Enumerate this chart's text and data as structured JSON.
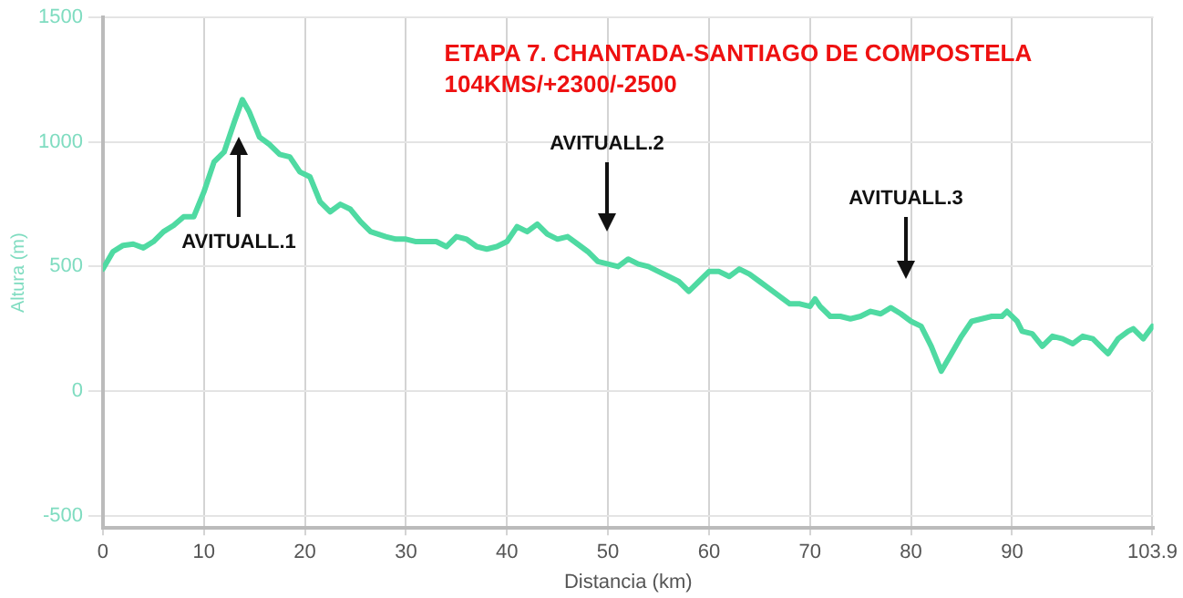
{
  "chart_data": {
    "type": "line",
    "title": "ETAPA 7. CHANTADA-SANTIAGO DE COMPOSTELA",
    "subtitle": "104KMS/+2300/-2500",
    "xlabel": "Distancia (km)",
    "ylabel": "Altura (m)",
    "x": [
      0,
      1,
      2,
      3,
      4,
      5,
      6,
      7,
      8,
      9,
      10,
      11,
      12,
      13,
      13.8,
      14.5,
      15.5,
      16.5,
      17.5,
      18.5,
      19.5,
      20.5,
      21.5,
      22.5,
      23.5,
      24.5,
      25.5,
      26.5,
      28,
      29,
      30,
      31,
      32,
      33,
      34,
      35,
      36,
      37,
      38,
      39,
      40,
      41,
      42,
      43,
      44,
      45,
      46,
      47,
      48,
      49,
      50,
      51,
      52,
      53,
      54,
      55,
      56,
      57,
      58,
      59,
      60,
      61,
      62,
      63,
      64,
      65,
      66,
      67,
      68,
      69,
      70,
      70.5,
      71,
      72,
      73,
      74,
      75,
      76,
      77,
      78,
      79,
      80,
      81,
      82,
      83,
      84,
      85,
      86,
      87,
      88,
      89,
      89.5,
      90.5,
      91,
      92,
      93,
      94,
      95,
      96,
      97,
      98,
      99,
      99.5,
      100.5,
      101.5,
      102,
      103,
      103.9
    ],
    "series": [
      {
        "color": "#4fdaa2",
        "values": [
          490,
          560,
          585,
          590,
          575,
          600,
          640,
          665,
          700,
          700,
          800,
          920,
          960,
          1080,
          1170,
          1120,
          1020,
          990,
          950,
          940,
          880,
          860,
          760,
          720,
          750,
          730,
          680,
          640,
          620,
          610,
          610,
          600,
          600,
          600,
          580,
          620,
          610,
          580,
          570,
          580,
          600,
          660,
          640,
          670,
          630,
          610,
          620,
          590,
          560,
          520,
          510,
          500,
          530,
          510,
          500,
          480,
          460,
          440,
          400,
          440,
          480,
          480,
          460,
          490,
          470,
          440,
          410,
          380,
          350,
          350,
          340,
          370,
          340,
          300,
          300,
          290,
          300,
          320,
          310,
          335,
          310,
          280,
          260,
          180,
          80,
          150,
          220,
          280,
          290,
          300,
          300,
          320,
          280,
          240,
          230,
          180,
          220,
          210,
          190,
          220,
          210,
          170,
          150,
          210,
          240,
          250,
          210,
          260
        ]
      }
    ],
    "xlim": [
      0,
      104
    ],
    "xticks": [
      0,
      10,
      20,
      30,
      40,
      50,
      60,
      70,
      80,
      90,
      103.9
    ],
    "ylim": [
      -550,
      1500
    ],
    "yticks": [
      -500,
      0,
      500,
      1000,
      1500
    ],
    "annotations": [
      "AVITUALL.1",
      "AVITUALL.2",
      "AVITUALL.3"
    ],
    "grid": true,
    "legend": false,
    "marker": "none",
    "line_style": "solid"
  }
}
